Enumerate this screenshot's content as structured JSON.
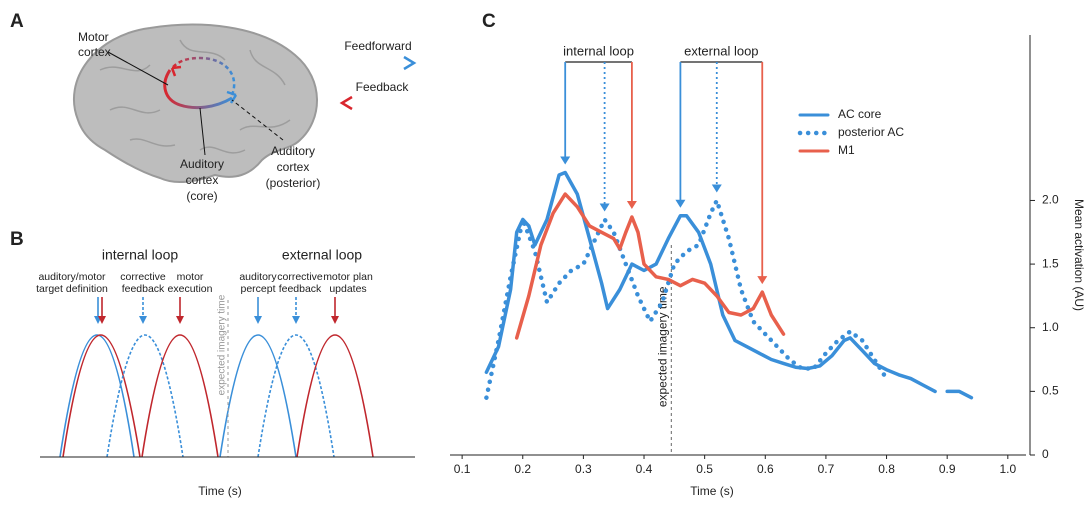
{
  "panel_labels": [
    "A",
    "B",
    "C"
  ],
  "panel_a": {
    "motor_cortex": [
      "Motor",
      "cortex"
    ],
    "auditory_cortex_core": [
      "Auditory",
      "cortex",
      "(core)"
    ],
    "auditory_cortex_posterior": [
      "Auditory",
      "cortex",
      "(posterior)"
    ],
    "feedforward": "Feedforward",
    "feedback": "Feedback"
  },
  "panel_b": {
    "internal_loop": "internal loop",
    "external_loop": "external loop",
    "events": [
      [
        "auditory/motor",
        "target definition"
      ],
      [
        "corrective",
        "feedback"
      ],
      [
        "motor",
        "execution"
      ],
      [
        "auditory",
        "percept"
      ],
      [
        "corrective",
        "feedback"
      ],
      [
        "motor plan",
        "updates"
      ]
    ],
    "imagery": "expected imagery time",
    "x_label": "Time (s)"
  },
  "chart_data": {
    "type": "line",
    "x_label": "Time (s)",
    "y_label": "Mean activation (AU)",
    "xlim": [
      0.08,
      1.03
    ],
    "ylim": [
      0,
      3.3
    ],
    "xticks": [
      0.1,
      0.2,
      0.3,
      0.4,
      0.5,
      0.6,
      0.7,
      0.8,
      0.9,
      {
        "value": 1,
        "label": "1.0"
      }
    ],
    "yticks": [
      0,
      0.5,
      {
        "value": 1,
        "label": "1.0"
      },
      1.5,
      {
        "value": 2,
        "label": "2.0"
      }
    ],
    "legend": "upper right",
    "series": [
      {
        "name": "AC core",
        "color": "#3a8fd9",
        "style": "solid",
        "x": [
          0.14,
          0.16,
          0.18,
          0.19,
          0.2,
          0.21,
          0.22,
          0.24,
          0.26,
          0.27,
          0.29,
          0.31,
          0.33,
          0.34,
          0.36,
          0.38,
          0.4,
          0.42,
          0.44,
          0.46,
          0.47,
          0.49,
          0.51,
          0.53,
          0.55,
          0.57,
          0.59,
          0.61,
          0.63,
          0.65,
          0.67,
          0.69,
          0.71,
          0.73,
          0.74,
          0.76,
          0.78,
          0.8,
          0.82,
          0.84,
          0.86,
          0.88,
          0.89,
          0.9,
          0.92,
          0.94
        ],
        "values": [
          0.65,
          0.85,
          1.3,
          1.75,
          1.85,
          1.8,
          1.65,
          1.85,
          2.2,
          2.22,
          2.05,
          1.7,
          1.35,
          1.15,
          1.3,
          1.5,
          1.45,
          1.5,
          1.7,
          1.88,
          1.88,
          1.75,
          1.5,
          1.1,
          0.9,
          0.85,
          0.8,
          0.75,
          0.72,
          0.69,
          0.68,
          0.7,
          0.78,
          0.9,
          0.92,
          0.82,
          0.72,
          0.67,
          0.63,
          0.6,
          0.55,
          0.5,
          null,
          0.5,
          0.5,
          0.45
        ]
      },
      {
        "name": "posterior AC",
        "color": "#3a8fd9",
        "style": "dotted",
        "x": [
          0.14,
          0.16,
          0.18,
          0.2,
          0.22,
          0.24,
          0.26,
          0.28,
          0.3,
          0.32,
          0.335,
          0.35,
          0.37,
          0.39,
          0.41,
          0.43,
          0.45,
          0.47,
          0.49,
          0.51,
          0.52,
          0.54,
          0.56,
          0.58,
          0.6,
          0.62,
          0.64,
          0.66,
          0.68,
          0.7,
          0.72,
          0.74,
          0.76,
          0.78,
          0.8
        ],
        "values": [
          0.45,
          0.9,
          1.4,
          1.85,
          1.6,
          1.2,
          1.35,
          1.45,
          1.5,
          1.7,
          1.85,
          1.75,
          1.5,
          1.25,
          1.05,
          1.2,
          1.5,
          1.6,
          1.65,
          1.9,
          2.0,
          1.7,
          1.3,
          1.05,
          0.95,
          0.85,
          0.75,
          0.68,
          0.68,
          0.8,
          0.9,
          0.97,
          0.9,
          0.75,
          0.6
        ]
      },
      {
        "name": "M1",
        "color": "#e8604c",
        "style": "solid",
        "x": [
          0.19,
          0.21,
          0.23,
          0.25,
          0.27,
          0.29,
          0.31,
          0.33,
          0.35,
          0.36,
          0.37,
          0.38,
          0.39,
          0.4,
          0.42,
          0.44,
          0.46,
          0.48,
          0.5,
          0.52,
          0.54,
          0.56,
          0.58,
          0.595,
          0.61,
          0.63
        ],
        "values": [
          0.92,
          1.25,
          1.65,
          1.9,
          2.05,
          1.95,
          1.8,
          1.75,
          1.7,
          1.62,
          1.75,
          1.87,
          1.75,
          1.5,
          1.4,
          1.38,
          1.33,
          1.38,
          1.35,
          1.25,
          1.12,
          1.1,
          1.15,
          1.28,
          1.1,
          0.95
        ]
      }
    ],
    "vline": {
      "x": 0.445,
      "label": "expected imagery time"
    },
    "loops": [
      {
        "label": "internal loop",
        "arrows": [
          {
            "x": 0.27,
            "series": "AC core"
          },
          {
            "x": 0.335,
            "series": "posterior AC"
          },
          {
            "x": 0.38,
            "series": "M1"
          }
        ]
      },
      {
        "label": "external loop",
        "arrows": [
          {
            "x": 0.46,
            "series": "AC core"
          },
          {
            "x": 0.52,
            "series": "posterior AC"
          },
          {
            "x": 0.595,
            "series": "M1"
          }
        ]
      }
    ]
  }
}
